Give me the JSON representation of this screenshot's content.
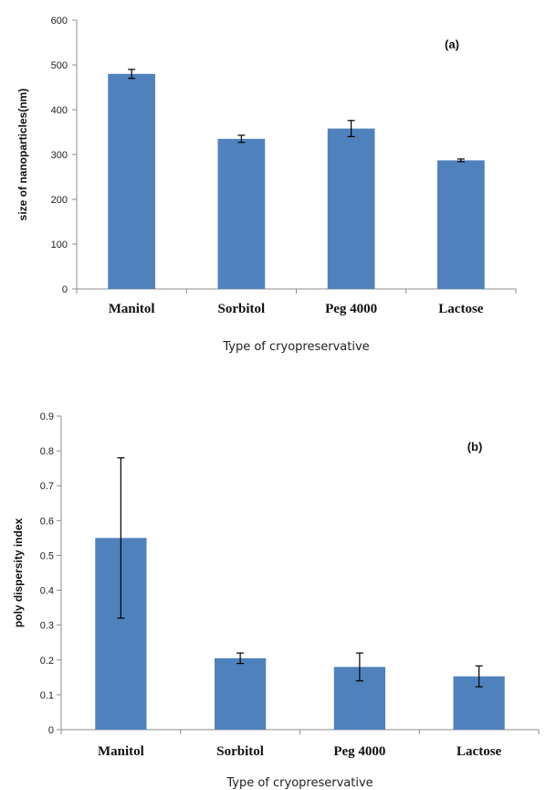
{
  "chart_data": [
    {
      "type": "bar",
      "annotation": "(a)",
      "categories": [
        "Manitol",
        "Sorbitol",
        "Peg 4000",
        "Lactose"
      ],
      "values": [
        480,
        335,
        358,
        287
      ],
      "errors": [
        10,
        8,
        18,
        3
      ],
      "ylabel": "size of nanoparticles(nm)",
      "xlabel": "Type of cryopreservative",
      "ylim": [
        0,
        600
      ],
      "yticks": [
        "0",
        "100",
        "200",
        "300",
        "400",
        "500",
        "600"
      ],
      "ytick_values": [
        0,
        100,
        200,
        300,
        400,
        500,
        600
      ],
      "bar_color": "#4f81bd",
      "grid": false
    },
    {
      "type": "bar",
      "annotation": "(b)",
      "categories": [
        "Manitol",
        "Sorbitol",
        "Peg 4000",
        "Lactose"
      ],
      "values": [
        0.55,
        0.205,
        0.18,
        0.153
      ],
      "errors": [
        0.23,
        0.015,
        0.04,
        0.03
      ],
      "ylabel": "poly dispersity index",
      "xlabel": "Type of cryopreservative",
      "ylim": [
        0,
        0.9
      ],
      "yticks": [
        "0",
        "0.1",
        "0.2",
        "0.3",
        "0.4",
        "0.5",
        "0.6",
        "0.7",
        "0.8",
        "0.9"
      ],
      "ytick_values": [
        0,
        0.1,
        0.2,
        0.3,
        0.4,
        0.5,
        0.6,
        0.7,
        0.8,
        0.9
      ],
      "bar_color": "#4f81bd",
      "grid": false
    }
  ]
}
